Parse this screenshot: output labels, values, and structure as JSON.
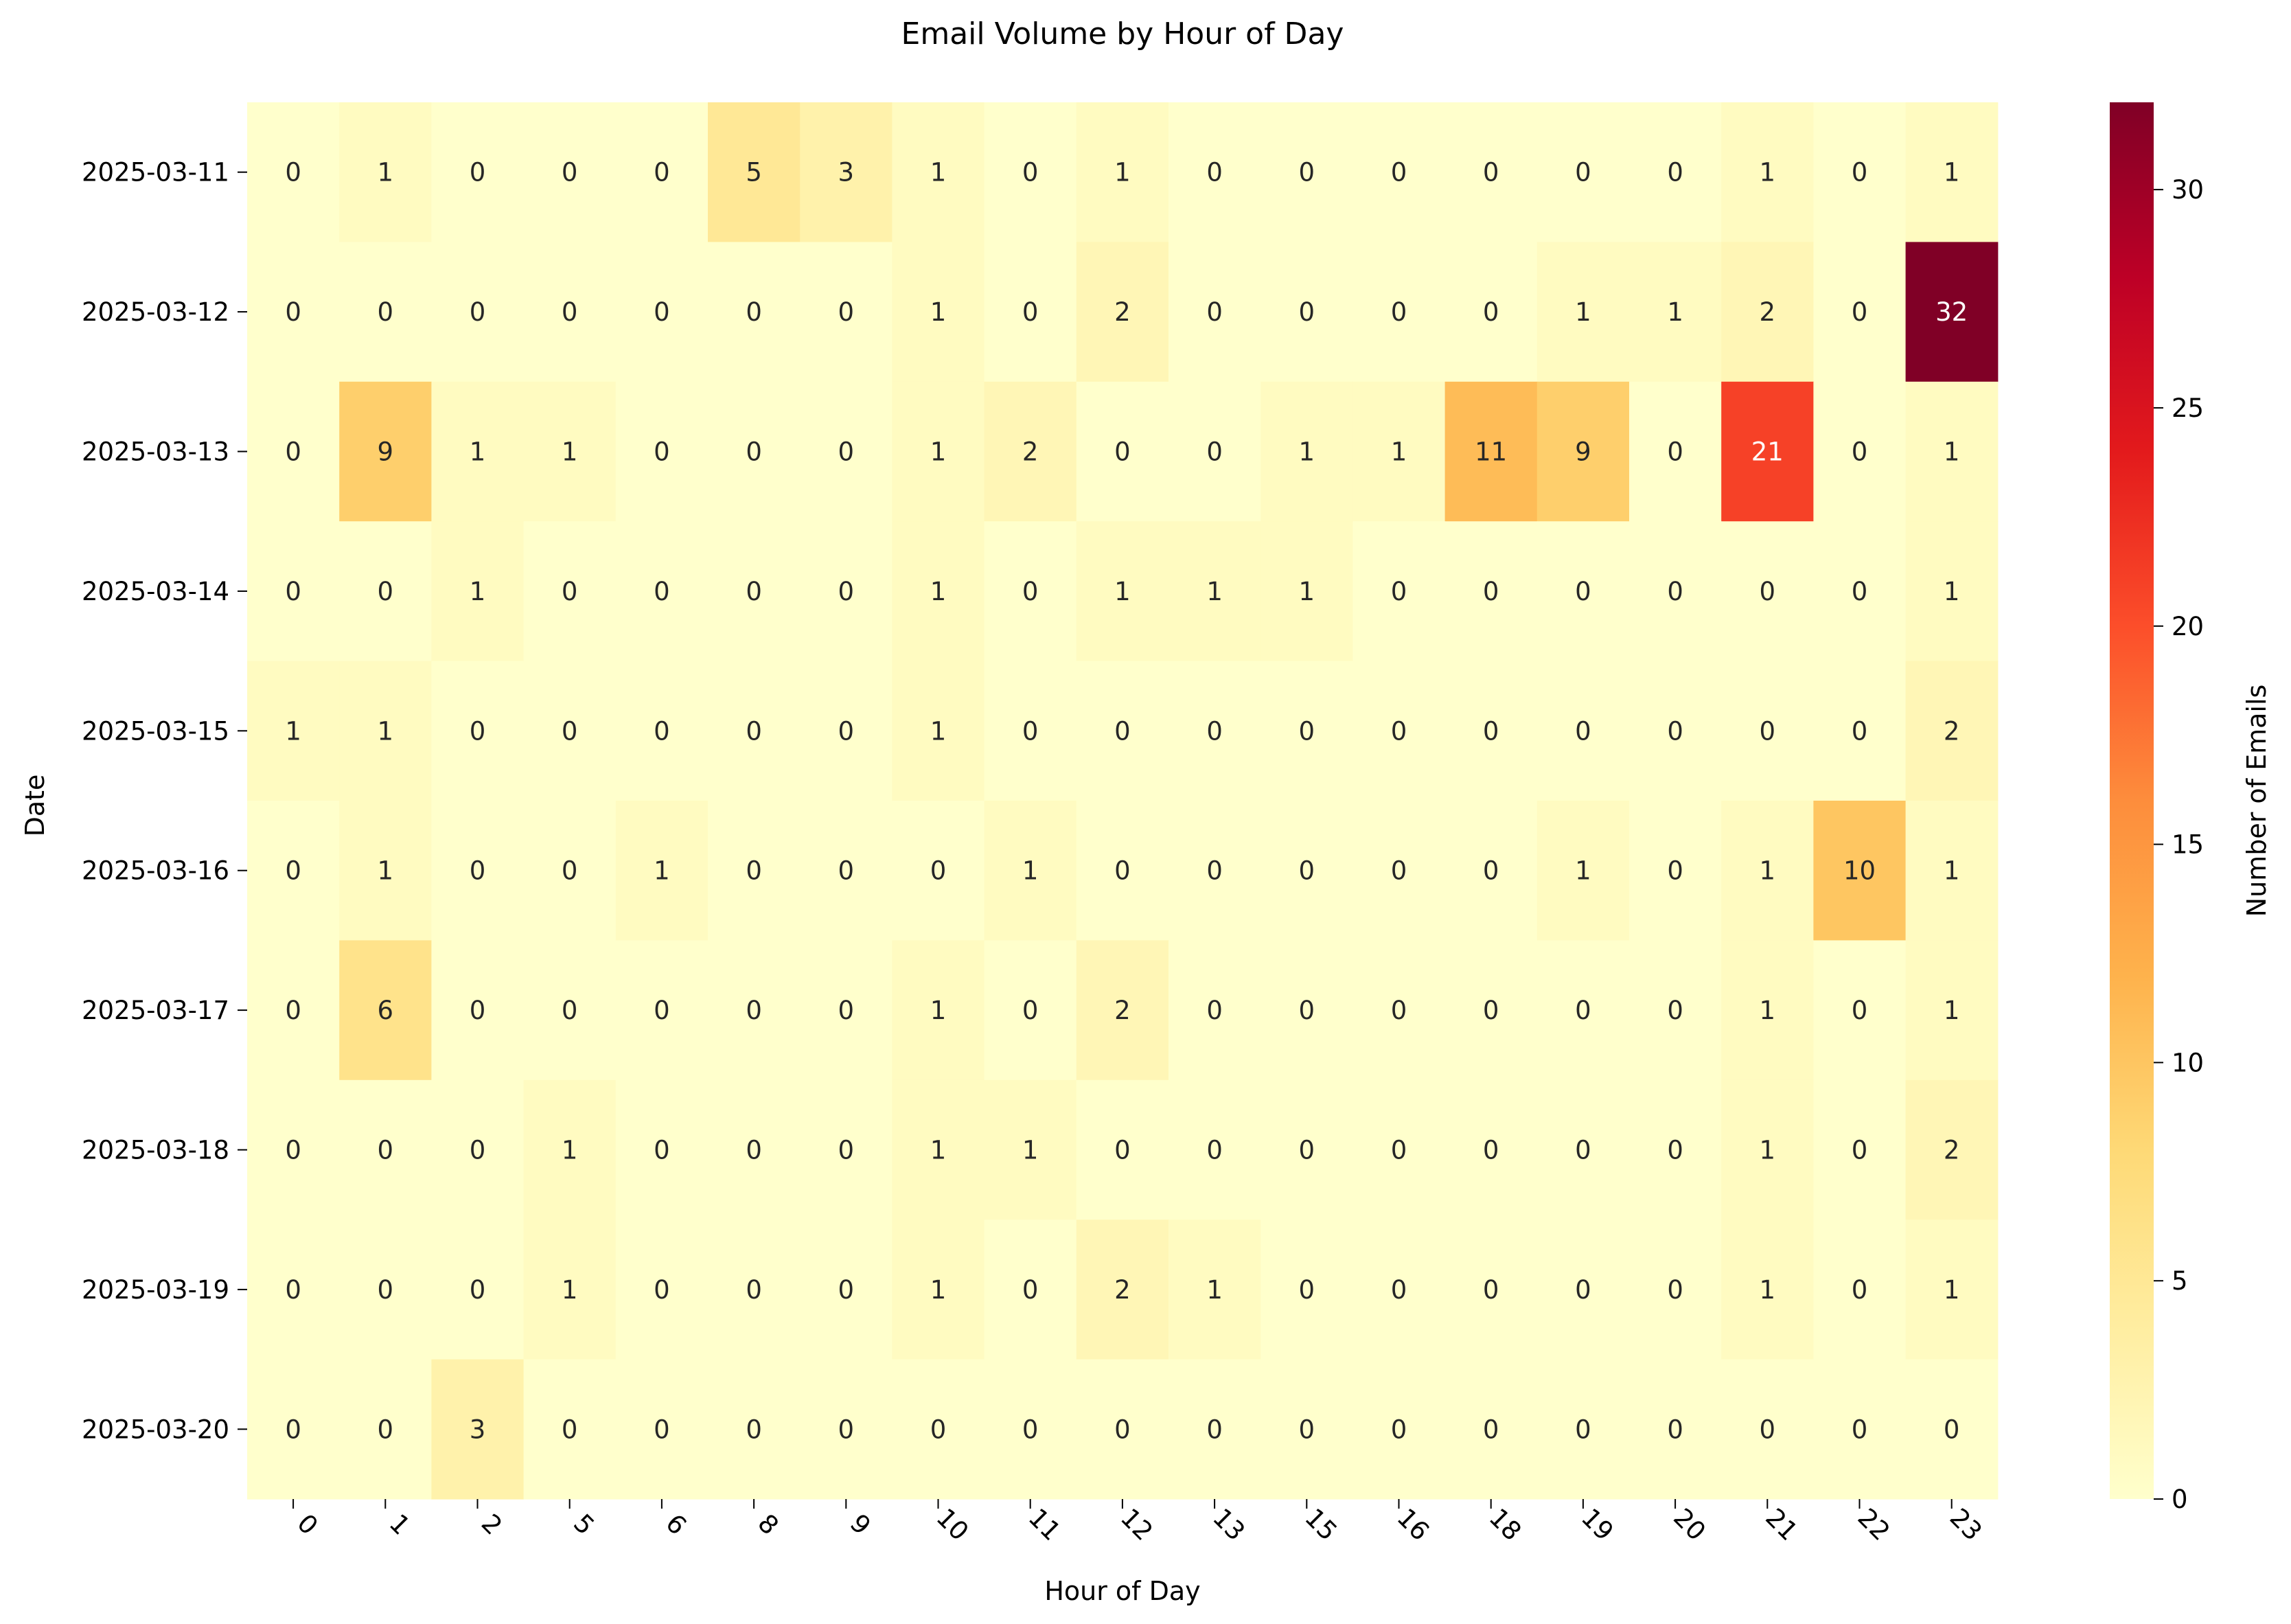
{
  "chart_data": {
    "type": "heatmap",
    "title": "Email Volume by Hour of Day",
    "xlabel": "Hour of Day",
    "ylabel": "Date",
    "colorbar_label": "Number of Emails",
    "colormap": "YlOrRd",
    "value_range": [
      0,
      32
    ],
    "colorbar_ticks": [
      0,
      5,
      10,
      15,
      20,
      25,
      30
    ],
    "x_categories": [
      "0",
      "1",
      "2",
      "5",
      "6",
      "8",
      "9",
      "10",
      "11",
      "12",
      "13",
      "15",
      "16",
      "18",
      "19",
      "20",
      "21",
      "22",
      "23"
    ],
    "y_categories": [
      "2025-03-11",
      "2025-03-12",
      "2025-03-13",
      "2025-03-14",
      "2025-03-15",
      "2025-03-16",
      "2025-03-17",
      "2025-03-18",
      "2025-03-19",
      "2025-03-20"
    ],
    "values": [
      [
        0,
        1,
        0,
        0,
        0,
        5,
        3,
        1,
        0,
        1,
        0,
        0,
        0,
        0,
        0,
        0,
        1,
        0,
        1
      ],
      [
        0,
        0,
        0,
        0,
        0,
        0,
        0,
        1,
        0,
        2,
        0,
        0,
        0,
        0,
        1,
        1,
        2,
        0,
        32
      ],
      [
        0,
        9,
        1,
        1,
        0,
        0,
        0,
        1,
        2,
        0,
        0,
        1,
        1,
        11,
        9,
        0,
        21,
        0,
        1
      ],
      [
        0,
        0,
        1,
        0,
        0,
        0,
        0,
        1,
        0,
        1,
        1,
        1,
        0,
        0,
        0,
        0,
        0,
        0,
        1
      ],
      [
        1,
        1,
        0,
        0,
        0,
        0,
        0,
        1,
        0,
        0,
        0,
        0,
        0,
        0,
        0,
        0,
        0,
        0,
        2
      ],
      [
        0,
        1,
        0,
        0,
        1,
        0,
        0,
        0,
        1,
        0,
        0,
        0,
        0,
        0,
        1,
        0,
        1,
        10,
        1
      ],
      [
        0,
        6,
        0,
        0,
        0,
        0,
        0,
        1,
        0,
        2,
        0,
        0,
        0,
        0,
        0,
        0,
        1,
        0,
        1
      ],
      [
        0,
        0,
        0,
        1,
        0,
        0,
        0,
        1,
        1,
        0,
        0,
        0,
        0,
        0,
        0,
        0,
        1,
        0,
        2
      ],
      [
        0,
        0,
        0,
        1,
        0,
        0,
        0,
        1,
        0,
        2,
        1,
        0,
        0,
        0,
        0,
        0,
        1,
        0,
        1
      ],
      [
        0,
        0,
        3,
        0,
        0,
        0,
        0,
        0,
        0,
        0,
        0,
        0,
        0,
        0,
        0,
        0,
        0,
        0,
        0
      ]
    ],
    "annotations": "cell values shown"
  }
}
